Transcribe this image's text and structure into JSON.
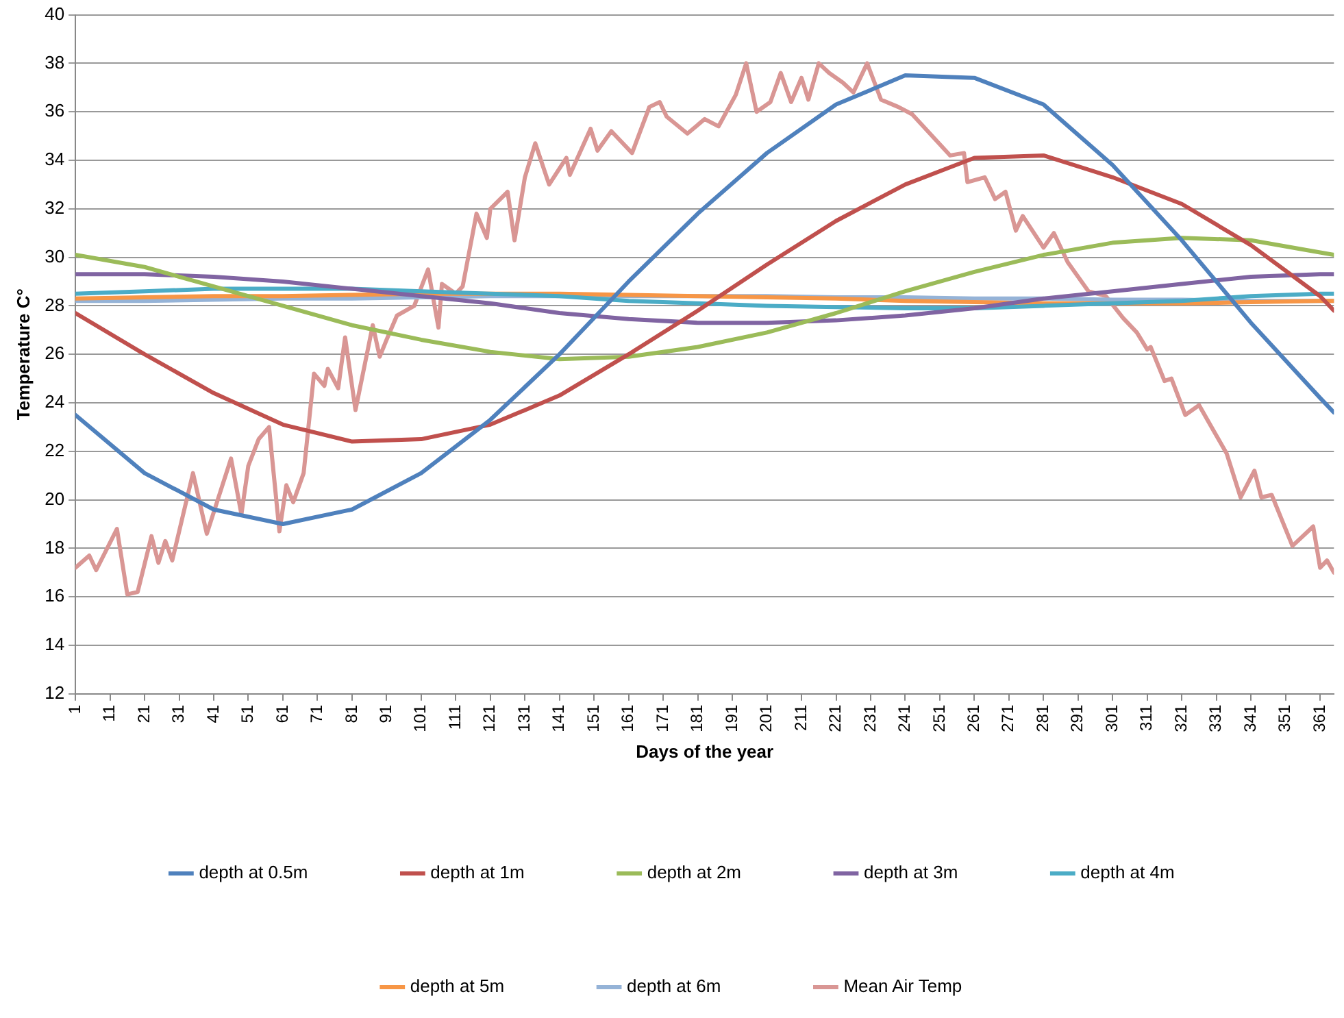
{
  "chart_data": {
    "type": "line",
    "xlabel": "Days of the year",
    "ylabel": "Temperature C°",
    "x": [
      1,
      21,
      41,
      61,
      81,
      101,
      121,
      141,
      161,
      181,
      201,
      221,
      241,
      261,
      281,
      301,
      321,
      341,
      361,
      365
    ],
    "xlim": [
      1,
      365
    ],
    "xticks": [
      1,
      11,
      21,
      31,
      41,
      51,
      61,
      71,
      81,
      91,
      101,
      111,
      121,
      131,
      141,
      151,
      161,
      171,
      181,
      191,
      201,
      211,
      221,
      231,
      241,
      251,
      261,
      271,
      281,
      291,
      301,
      311,
      321,
      331,
      341,
      351,
      361
    ],
    "ylim": [
      12,
      40
    ],
    "yticks": [
      12,
      14,
      16,
      18,
      20,
      22,
      24,
      26,
      28,
      30,
      32,
      34,
      36,
      38,
      40
    ],
    "grid": "y",
    "legend": "bottom",
    "marker": "none",
    "line_style": "solid",
    "series": [
      {
        "name": "depth at 0.5m",
        "color": "#4f81bd",
        "values": [
          23.5,
          21.1,
          19.6,
          19.0,
          19.6,
          21.1,
          23.3,
          26.0,
          29.0,
          31.8,
          34.3,
          36.3,
          37.5,
          37.4,
          36.3,
          33.8,
          30.7,
          27.3,
          24.2,
          23.6
        ]
      },
      {
        "name": "depth at 1m",
        "color": "#c0504d",
        "values": [
          27.7,
          26.0,
          24.4,
          23.1,
          22.4,
          22.5,
          23.1,
          24.3,
          26.0,
          27.8,
          29.7,
          31.5,
          33.0,
          34.1,
          34.2,
          33.3,
          32.2,
          30.5,
          28.4,
          27.8
        ]
      },
      {
        "name": "depth at 2m",
        "color": "#9bbb59",
        "values": [
          30.1,
          29.6,
          28.8,
          28.0,
          27.2,
          26.6,
          26.1,
          25.8,
          25.9,
          26.3,
          26.9,
          27.7,
          28.6,
          29.4,
          30.1,
          30.6,
          30.8,
          30.7,
          30.2,
          30.1
        ]
      },
      {
        "name": "depth at 3m",
        "color": "#8064a2",
        "values": [
          29.3,
          29.3,
          29.2,
          29.0,
          28.7,
          28.4,
          28.1,
          27.7,
          27.45,
          27.3,
          27.3,
          27.4,
          27.6,
          27.9,
          28.3,
          28.6,
          28.9,
          29.2,
          29.3,
          29.3
        ]
      },
      {
        "name": "depth at 4m",
        "color": "#4bacc6",
        "values": [
          28.5,
          28.6,
          28.7,
          28.7,
          28.7,
          28.6,
          28.5,
          28.4,
          28.2,
          28.1,
          28.0,
          27.95,
          27.9,
          27.9,
          28.0,
          28.1,
          28.2,
          28.4,
          28.5,
          28.5
        ]
      },
      {
        "name": "depth at 5m",
        "color": "#f79646",
        "values": [
          28.3,
          28.35,
          28.4,
          28.4,
          28.45,
          28.5,
          28.5,
          28.5,
          28.45,
          28.4,
          28.35,
          28.3,
          28.2,
          28.15,
          28.1,
          28.1,
          28.1,
          28.15,
          28.2,
          28.2
        ]
      },
      {
        "name": "depth at 6m",
        "color": "#95b3d7",
        "values": [
          28.2,
          28.2,
          28.25,
          28.3,
          28.3,
          28.35,
          28.4,
          28.4,
          28.4,
          28.4,
          28.4,
          28.35,
          28.35,
          28.3,
          28.3,
          28.25,
          28.25,
          28.2,
          28.2,
          28.2
        ]
      },
      {
        "name": "Mean Air Temp",
        "color": "#d99694",
        "x": [
          1,
          5,
          7,
          13,
          16,
          19,
          23,
          25,
          27,
          29,
          35,
          39,
          46,
          49,
          51,
          54,
          57,
          60,
          62,
          64,
          67,
          70,
          73,
          74,
          77,
          79,
          82,
          87,
          89,
          91,
          94,
          99,
          103,
          106,
          107,
          111,
          113,
          117,
          120,
          121,
          126,
          128,
          131,
          134,
          138,
          143,
          144,
          150,
          152,
          156,
          162,
          167,
          170,
          172,
          178,
          183,
          187,
          192,
          195,
          198,
          202,
          205,
          208,
          211,
          213,
          216,
          219,
          223,
          226,
          230,
          234,
          239,
          243,
          254,
          258,
          259,
          264,
          267,
          270,
          273,
          275,
          281,
          284,
          288,
          294,
          299,
          304,
          308,
          311,
          312,
          316,
          318,
          322,
          326,
          330,
          334,
          338,
          342,
          344,
          347,
          353,
          359,
          361,
          363,
          365
        ],
        "values": [
          17.2,
          17.7,
          17.1,
          18.8,
          16.1,
          16.2,
          18.5,
          17.4,
          18.3,
          17.5,
          21.1,
          18.6,
          21.7,
          19.4,
          21.4,
          22.5,
          23.0,
          18.7,
          20.6,
          19.9,
          21.1,
          25.2,
          24.7,
          25.4,
          24.6,
          26.7,
          23.7,
          27.2,
          25.9,
          26.6,
          27.6,
          28.0,
          29.5,
          27.1,
          28.9,
          28.5,
          28.8,
          31.8,
          30.8,
          32.0,
          32.7,
          30.7,
          33.3,
          34.7,
          33.0,
          34.1,
          33.4,
          35.3,
          34.4,
          35.2,
          34.3,
          36.2,
          36.4,
          35.8,
          35.1,
          35.7,
          35.4,
          36.7,
          38.0,
          36.0,
          36.4,
          37.6,
          36.4,
          37.4,
          36.5,
          38.0,
          37.6,
          37.2,
          36.8,
          38.0,
          36.5,
          36.2,
          35.9,
          34.2,
          34.3,
          33.1,
          33.3,
          32.4,
          32.7,
          31.1,
          31.7,
          30.4,
          31.0,
          29.8,
          28.6,
          28.4,
          27.5,
          26.9,
          26.2,
          26.3,
          24.9,
          25.0,
          23.5,
          23.9,
          22.9,
          21.9,
          20.1,
          21.2,
          20.1,
          20.2,
          18.1,
          18.9,
          17.2,
          17.5,
          17.0
        ]
      }
    ]
  }
}
